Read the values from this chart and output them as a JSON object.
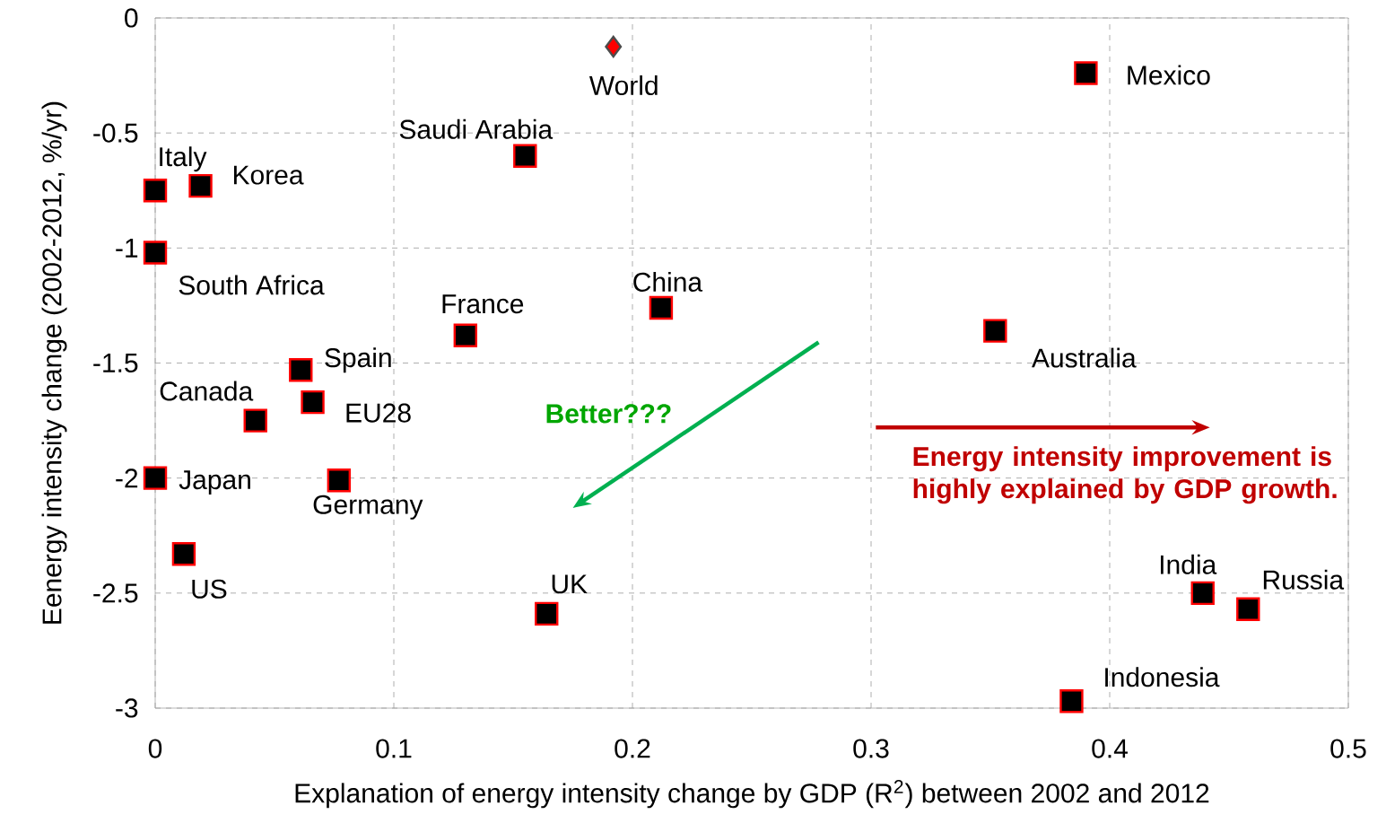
{
  "chart_data": {
    "type": "scatter",
    "xlabel": "Explanation of energy intensity change by GDP (R$^{2}$) between 2002 and 2012",
    "ylabel": "Eenergy intensity change (2002-2012, %/yr)",
    "xlim": [
      0,
      0.5
    ],
    "ylim": [
      -3,
      0
    ],
    "xticks": [
      0,
      0.1,
      0.2,
      0.3,
      0.4,
      0.5
    ],
    "yticks": [
      0,
      -0.5,
      -1,
      -1.5,
      -2,
      -2.5,
      -3
    ],
    "grid": true,
    "series": [
      {
        "type": "scatter",
        "marker": "diamond",
        "color": "#ff0000",
        "x": [
          0.192
        ],
        "values": [
          -0.125
        ]
      },
      {
        "type": "scatter",
        "marker": "square",
        "color": "#000000",
        "x": [
          0.39,
          0.155,
          0,
          0.019,
          0,
          0.13,
          0.212,
          0.352,
          0.061,
          0.066,
          0.042,
          0,
          0.077,
          0.012,
          0.164,
          0.439,
          0.458,
          0.384
        ],
        "values": [
          -0.24,
          -0.6,
          -0.75,
          -0.73,
          -1.02,
          -1.38,
          -1.26,
          -1.36,
          -1.53,
          -1.67,
          -1.75,
          -2,
          -2.01,
          -2.33,
          -2.59,
          -2.5,
          -2.57,
          -2.97
        ]
      }
    ],
    "annotations": [
      {
        "text": "World",
        "x": 0.192,
        "y": -0.125
      },
      {
        "text": "Mexico",
        "x": 0.39,
        "y": -0.24
      },
      {
        "text": "Saudi Arabia",
        "x": 0.155,
        "y": -0.6
      },
      {
        "text": "Italy",
        "x": 0,
        "y": -0.75
      },
      {
        "text": "Korea",
        "x": 0.019,
        "y": -0.73
      },
      {
        "text": "South Africa",
        "x": 0,
        "y": -1.02
      },
      {
        "text": "France",
        "x": 0.13,
        "y": -1.38
      },
      {
        "text": "China",
        "x": 0.212,
        "y": -1.26
      },
      {
        "text": "Australia",
        "x": 0.352,
        "y": -1.36
      },
      {
        "text": "Spain",
        "x": 0.061,
        "y": -1.53
      },
      {
        "text": "EU28",
        "x": 0.066,
        "y": -1.67
      },
      {
        "text": "Canada",
        "x": 0.042,
        "y": -1.75
      },
      {
        "text": "Japan",
        "x": 0,
        "y": -2
      },
      {
        "text": "Germany",
        "x": 0.077,
        "y": -2.01
      },
      {
        "text": "US",
        "x": 0.012,
        "y": -2.33
      },
      {
        "text": "UK",
        "x": 0.164,
        "y": -2.59
      },
      {
        "text": "India",
        "x": 0.439,
        "y": -2.5
      },
      {
        "text": "Russia",
        "x": 0.458,
        "y": -2.57
      },
      {
        "text": "Indonesia",
        "x": 0.384,
        "y": -2.97
      },
      "Better???",
      "Energy intensity improvement is highly explained by GDP growth."
    ]
  }
}
